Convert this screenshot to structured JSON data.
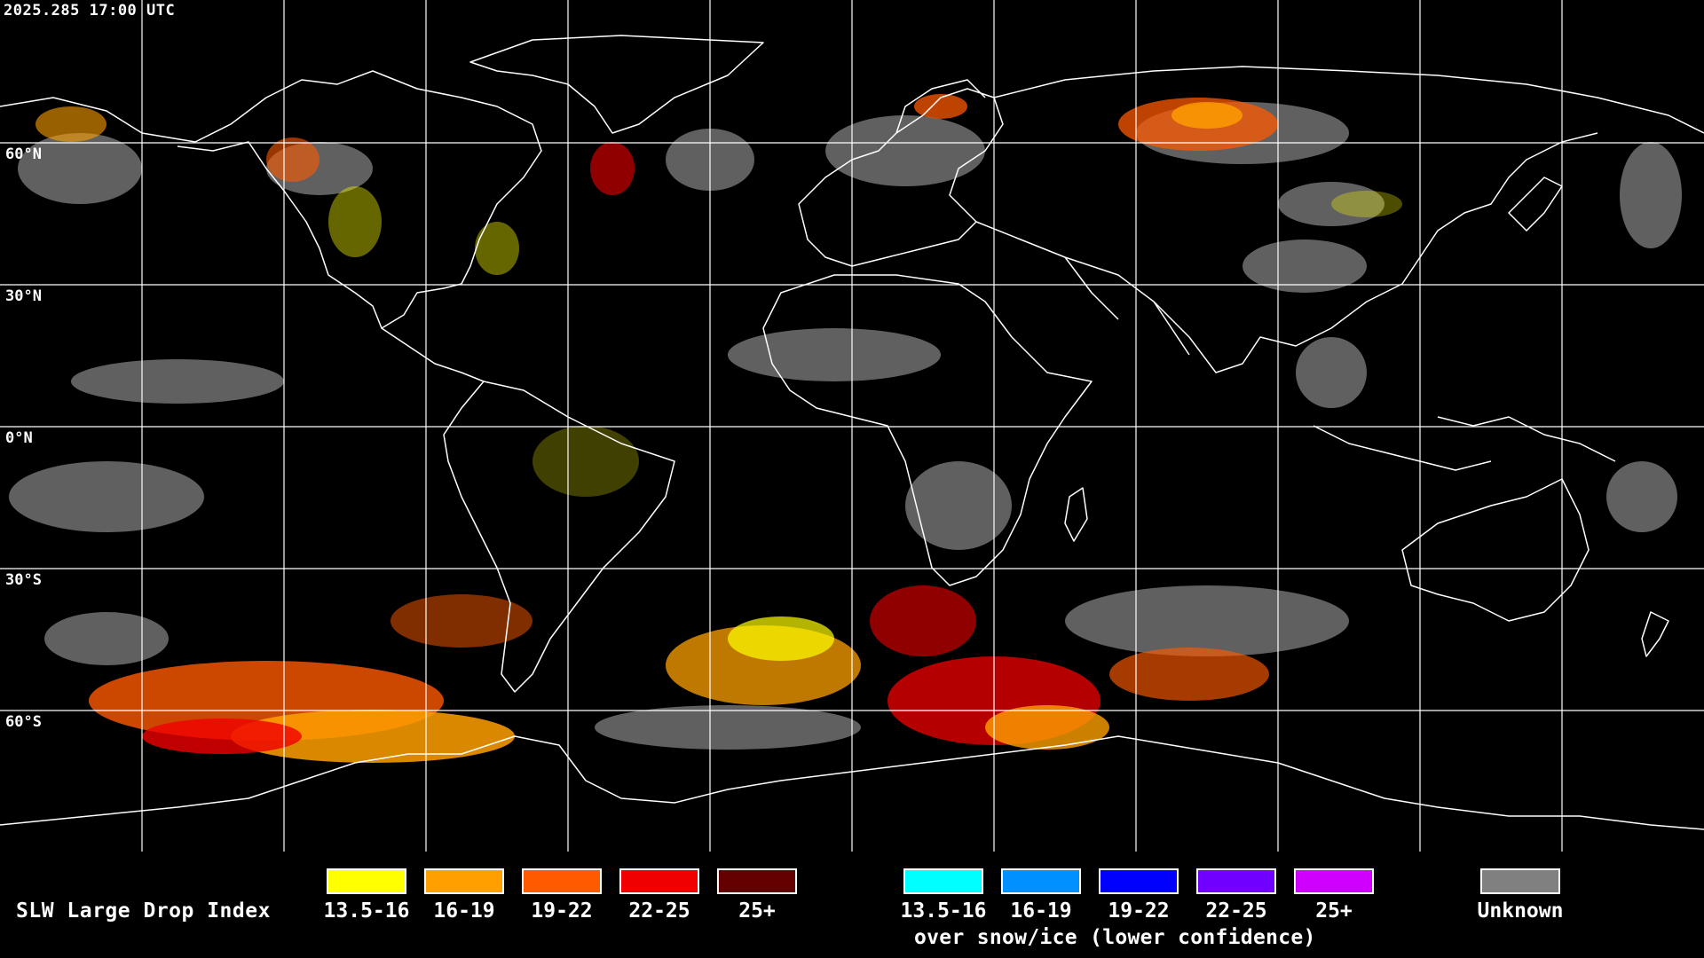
{
  "header": {
    "timestamp": "2025.285 17:00 UTC"
  },
  "map": {
    "projection": "equirectangular",
    "lat_labels": [
      "60°N",
      "30°N",
      "0°N",
      "30°S",
      "60°S"
    ],
    "colors": {
      "background": "#000000",
      "coastline": "#ffffff",
      "grid": "#ffffff"
    }
  },
  "legend": {
    "title": "SLW Large Drop Index",
    "main_classes": [
      {
        "label": "13.5-16",
        "color": "#ffff00"
      },
      {
        "label": "16-19",
        "color": "#ffa000"
      },
      {
        "label": "19-22",
        "color": "#ff5a00"
      },
      {
        "label": "22-25",
        "color": "#f00000"
      },
      {
        "label": "25+",
        "color": "#640000"
      }
    ],
    "snow_classes": [
      {
        "label": "13.5-16",
        "color": "#00ffff"
      },
      {
        "label": "16-19",
        "color": "#0090ff"
      },
      {
        "label": "19-22",
        "color": "#0000ff"
      },
      {
        "label": "22-25",
        "color": "#7000ff"
      },
      {
        "label": "25+",
        "color": "#d000ff"
      }
    ],
    "snow_note": "over snow/ice (lower confidence)",
    "unknown": {
      "label": "Unknown",
      "color": "#808080"
    }
  }
}
